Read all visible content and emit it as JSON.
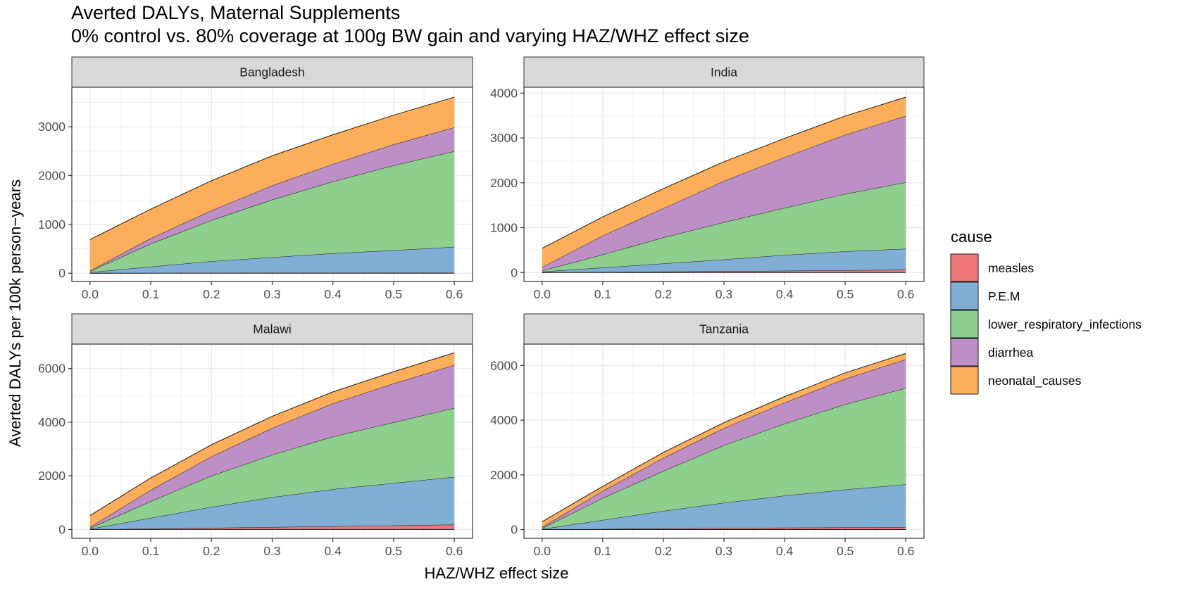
{
  "chart_data": {
    "type": "area",
    "title": "Averted DALYs, Maternal Supplements",
    "subtitle": "0% control vs. 80% coverage at 100g BW gain and varying HAZ/WHZ effect size",
    "xlabel": "HAZ/WHZ effect size",
    "ylabel": "Averted DALYs per 100k person−years",
    "x": [
      0.0,
      0.1,
      0.2,
      0.3,
      0.4,
      0.5,
      0.6
    ],
    "x_tick_labels": [
      "0.0",
      "0.1",
      "0.2",
      "0.3",
      "0.4",
      "0.5",
      "0.6"
    ],
    "stacked": true,
    "grid": true,
    "legend": {
      "title": "cause",
      "position": "right",
      "entries": [
        {
          "name": "measles",
          "color": "#ee7677"
        },
        {
          "name": "P.E.M",
          "color": "#80aed5"
        },
        {
          "name": "lower_respiratory_infections",
          "color": "#8fcf8e"
        },
        {
          "name": "diarrhea",
          "color": "#be8ec6"
        },
        {
          "name": "neonatal_causes",
          "color": "#fdae5b"
        }
      ]
    },
    "panels": [
      {
        "name": "Bangladesh",
        "ylim": [
          -170,
          3810
        ],
        "yticks": [
          0,
          1000,
          2000,
          3000
        ],
        "series": [
          {
            "name": "measles",
            "values": [
              0,
              3,
              5,
              6,
              7,
              8,
              8
            ]
          },
          {
            "name": "P.E.M",
            "values": [
              20,
              130,
              240,
              320,
              400,
              460,
              530
            ]
          },
          {
            "name": "lower_respiratory_infections",
            "values": [
              20,
              470,
              840,
              1180,
              1470,
              1740,
              1960
            ]
          },
          {
            "name": "diarrhea",
            "values": [
              10,
              110,
              200,
              290,
              360,
              430,
              490
            ]
          },
          {
            "name": "neonatal_causes",
            "values": [
              640,
              600,
              610,
              610,
              600,
              600,
              620
            ]
          }
        ]
      },
      {
        "name": "India",
        "ylim": [
          -200,
          4130
        ],
        "yticks": [
          0,
          1000,
          2000,
          3000,
          4000
        ],
        "series": [
          {
            "name": "measles",
            "values": [
              0,
              10,
              20,
              30,
              40,
              50,
              60
            ]
          },
          {
            "name": "P.E.M",
            "values": [
              20,
              100,
              180,
              260,
              350,
              420,
              470
            ]
          },
          {
            "name": "lower_respiratory_infections",
            "values": [
              20,
              290,
              580,
              830,
              1050,
              1280,
              1480
            ]
          },
          {
            "name": "diarrhea",
            "values": [
              80,
              420,
              650,
              920,
              1130,
              1320,
              1480
            ]
          },
          {
            "name": "neonatal_causes",
            "values": [
              420,
              420,
              440,
              430,
              420,
              420,
              420
            ]
          }
        ]
      },
      {
        "name": "Malawi",
        "ylim": [
          -330,
          6910
        ],
        "yticks": [
          0,
          2000,
          4000,
          6000
        ],
        "series": [
          {
            "name": "measles",
            "values": [
              0,
              30,
              60,
              90,
              120,
              150,
              180
            ]
          },
          {
            "name": "P.E.M",
            "values": [
              20,
              400,
              780,
              1110,
              1380,
              1580,
              1780
            ]
          },
          {
            "name": "lower_respiratory_infections",
            "values": [
              30,
              620,
              1160,
              1580,
              1960,
              2260,
              2570
            ]
          },
          {
            "name": "diarrhea",
            "values": [
              40,
              420,
              720,
              1000,
              1240,
              1450,
              1600
            ]
          },
          {
            "name": "neonatal_causes",
            "values": [
              430,
              450,
              440,
              440,
              430,
              440,
              460
            ]
          }
        ]
      },
      {
        "name": "Tanzania",
        "ylim": [
          -320,
          6780
        ],
        "yticks": [
          0,
          2000,
          4000,
          6000
        ],
        "series": [
          {
            "name": "measles",
            "values": [
              0,
              20,
              40,
              60,
              70,
              80,
              90
            ]
          },
          {
            "name": "P.E.M",
            "values": [
              20,
              330,
              640,
              920,
              1170,
              1380,
              1560
            ]
          },
          {
            "name": "lower_respiratory_infections",
            "values": [
              30,
              800,
              1460,
              2100,
              2630,
              3120,
              3520
            ]
          },
          {
            "name": "diarrhea",
            "values": [
              40,
              260,
              480,
              630,
              770,
              930,
              1050
            ]
          },
          {
            "name": "neonatal_causes",
            "values": [
              200,
              170,
              200,
              200,
              220,
              220,
              220
            ]
          }
        ]
      }
    ]
  }
}
